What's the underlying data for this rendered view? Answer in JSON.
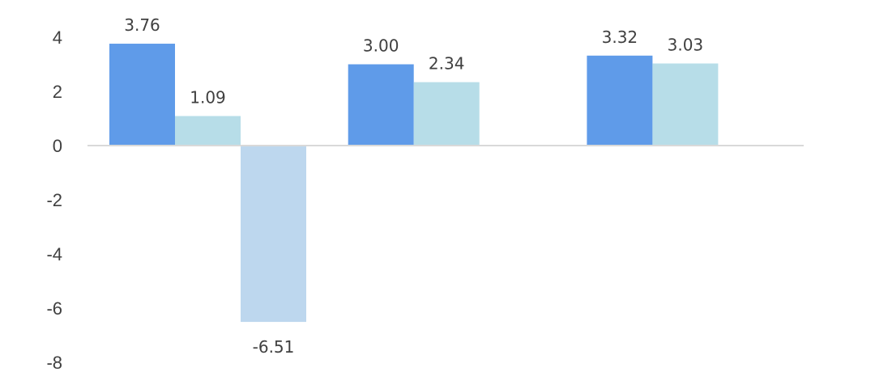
{
  "chart_data": {
    "type": "bar",
    "categories": [
      "",
      "",
      ""
    ],
    "series": [
      {
        "values": [
          3.76,
          3.0,
          3.32
        ],
        "color": "#5f9be9"
      },
      {
        "values": [
          1.09,
          2.34,
          3.03
        ],
        "color": "#b7dde8"
      },
      {
        "values": [
          -6.51,
          null,
          null
        ],
        "color": "#bdd7ee"
      }
    ],
    "value_labels": [
      [
        "3.76",
        "3.00",
        "3.32"
      ],
      [
        "1.09",
        "2.34",
        "3.03"
      ],
      [
        "-6.51",
        "",
        ""
      ]
    ],
    "yticks": [
      {
        "value": 4,
        "label": "4"
      },
      {
        "value": 2,
        "label": "2"
      },
      {
        "value": 0,
        "label": "0"
      },
      {
        "value": -2,
        "label": "-2"
      },
      {
        "value": -4,
        "label": "-4"
      },
      {
        "value": -6,
        "label": "-6"
      },
      {
        "value": -8,
        "label": "-8"
      }
    ],
    "ylim": [
      -8,
      4
    ],
    "title": "",
    "xlabel": "",
    "ylabel": "",
    "grid": false,
    "legend": "none",
    "axis_color": "#d9d9d9"
  }
}
